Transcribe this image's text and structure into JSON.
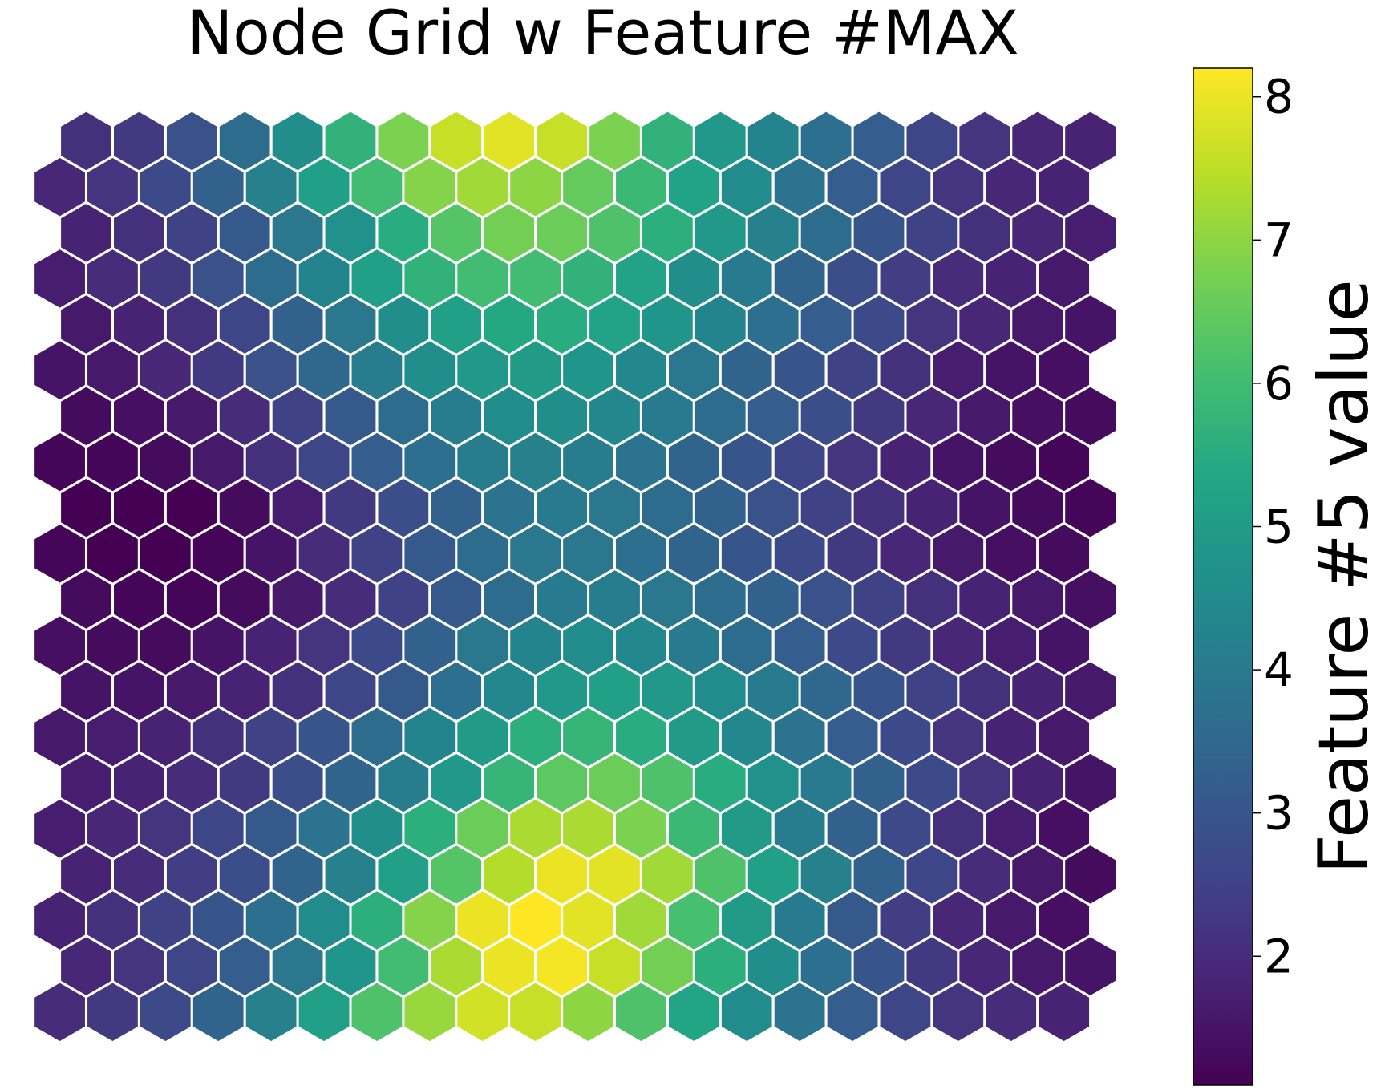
{
  "chart_data": {
    "type": "heatmap",
    "layout": "hexagonal",
    "title": "Node Grid w Feature #MAX",
    "colormap": "viridis",
    "colorbar": {
      "label": "Feature #5 value",
      "range": [
        1.1,
        8.2
      ],
      "ticks": [
        2,
        3,
        4,
        5,
        6,
        7,
        8
      ],
      "tick_labels": [
        "2",
        "3",
        "4",
        "5",
        "6",
        "7",
        "8"
      ],
      "position": "right"
    },
    "grid": false,
    "rows": 20,
    "cols": 20,
    "row_order": "top-to-bottom",
    "values": [
      [
        2.1,
        2.3,
        2.9,
        3.6,
        4.6,
        5.7,
        6.8,
        7.6,
        7.9,
        7.6,
        6.8,
        5.7,
        4.9,
        4.3,
        3.7,
        3.2,
        2.6,
        2.2,
        1.9,
        1.8
      ],
      [
        1.9,
        2.2,
        2.7,
        3.3,
        4.2,
        5.1,
        6.0,
        6.9,
        7.2,
        7.0,
        6.5,
        5.9,
        5.2,
        4.5,
        3.8,
        3.2,
        2.6,
        2.2,
        1.9,
        1.8
      ],
      [
        1.8,
        2.1,
        2.5,
        3.1,
        3.9,
        4.7,
        5.5,
        6.3,
        6.7,
        6.6,
        6.2,
        5.6,
        4.9,
        4.2,
        3.6,
        3.0,
        2.5,
        2.1,
        1.9,
        1.7
      ],
      [
        1.7,
        2.0,
        2.3,
        2.9,
        3.6,
        4.3,
        5.1,
        5.7,
        6.0,
        6.0,
        5.7,
        5.2,
        4.6,
        4.0,
        3.4,
        2.8,
        2.4,
        2.0,
        1.8,
        1.6
      ],
      [
        1.6,
        1.8,
        2.1,
        2.6,
        3.3,
        3.9,
        4.6,
        5.1,
        5.4,
        5.5,
        5.2,
        4.8,
        4.3,
        3.7,
        3.2,
        2.7,
        2.2,
        1.9,
        1.6,
        1.5
      ],
      [
        1.5,
        1.6,
        1.9,
        2.3,
        2.9,
        3.5,
        4.1,
        4.6,
        4.9,
        5.0,
        4.8,
        4.4,
        3.9,
        3.4,
        3.0,
        2.5,
        2.1,
        1.7,
        1.5,
        1.4
      ],
      [
        1.3,
        1.4,
        1.6,
        2.0,
        2.5,
        3.1,
        3.6,
        4.1,
        4.5,
        4.6,
        4.4,
        4.0,
        3.6,
        3.2,
        2.8,
        2.3,
        1.9,
        1.6,
        1.4,
        1.3
      ],
      [
        1.2,
        1.2,
        1.3,
        1.6,
        2.1,
        2.6,
        3.2,
        3.7,
        4.1,
        4.2,
        4.1,
        3.8,
        3.4,
        3.0,
        2.6,
        2.2,
        1.8,
        1.5,
        1.3,
        1.2
      ],
      [
        1.1,
        1.1,
        1.1,
        1.3,
        1.7,
        2.3,
        2.8,
        3.3,
        3.8,
        4.0,
        3.9,
        3.6,
        3.3,
        2.9,
        2.5,
        2.1,
        1.8,
        1.5,
        1.3,
        1.2
      ],
      [
        1.2,
        1.1,
        1.1,
        1.2,
        1.5,
        2.0,
        2.5,
        3.1,
        3.6,
        3.9,
        3.9,
        3.7,
        3.4,
        3.0,
        2.7,
        2.3,
        1.9,
        1.6,
        1.4,
        1.3
      ],
      [
        1.3,
        1.2,
        1.2,
        1.3,
        1.6,
        2.0,
        2.5,
        3.1,
        3.6,
        4.0,
        4.1,
        3.9,
        3.6,
        3.3,
        2.9,
        2.5,
        2.1,
        1.8,
        1.6,
        1.4
      ],
      [
        1.4,
        1.3,
        1.3,
        1.5,
        1.8,
        2.2,
        2.7,
        3.3,
        3.9,
        4.3,
        4.5,
        4.4,
        4.0,
        3.6,
        3.2,
        2.7,
        2.3,
        1.9,
        1.7,
        1.5
      ],
      [
        1.5,
        1.5,
        1.6,
        1.8,
        2.1,
        2.6,
        3.1,
        3.7,
        4.4,
        4.9,
        5.1,
        4.9,
        4.5,
        4.0,
        3.5,
        3.0,
        2.5,
        2.1,
        1.8,
        1.6
      ],
      [
        1.6,
        1.7,
        1.8,
        2.1,
        2.5,
        3.0,
        3.6,
        4.3,
        5.0,
        5.6,
        5.8,
        5.5,
        5.0,
        4.4,
        3.8,
        3.2,
        2.7,
        2.2,
        1.8,
        1.6
      ],
      [
        1.7,
        1.8,
        2.0,
        2.3,
        2.8,
        3.4,
        4.1,
        4.9,
        5.8,
        6.4,
        6.6,
        6.2,
        5.5,
        4.7,
        4.0,
        3.3,
        2.7,
        2.2,
        1.8,
        1.5
      ],
      [
        1.7,
        1.9,
        2.2,
        2.6,
        3.1,
        3.8,
        4.6,
        5.6,
        6.6,
        7.3,
        7.3,
        6.8,
        5.9,
        5.0,
        4.1,
        3.3,
        2.7,
        2.1,
        1.7,
        1.4
      ],
      [
        1.8,
        2.0,
        2.4,
        2.8,
        3.4,
        4.2,
        5.1,
        6.3,
        7.4,
        8.0,
        7.9,
        7.2,
        6.2,
        5.1,
        4.2,
        3.3,
        2.6,
        2.0,
        1.6,
        1.3
      ],
      [
        1.8,
        2.1,
        2.5,
        3.0,
        3.7,
        4.5,
        5.6,
        6.9,
        8.0,
        8.2,
        7.9,
        7.2,
        6.1,
        5.0,
        4.0,
        3.1,
        2.4,
        1.9,
        1.6,
        1.4
      ],
      [
        1.9,
        2.2,
        2.6,
        3.2,
        3.9,
        4.8,
        6.0,
        7.3,
        8.0,
        8.1,
        7.6,
        6.7,
        5.6,
        4.6,
        3.7,
        3.0,
        2.3,
        1.9,
        1.6,
        1.5
      ],
      [
        2.0,
        2.3,
        2.7,
        3.4,
        4.2,
        5.1,
        6.2,
        7.1,
        7.7,
        7.6,
        7.0,
        6.2,
        5.3,
        4.5,
        3.8,
        3.2,
        2.6,
        2.2,
        2.0,
        1.8
      ]
    ]
  }
}
